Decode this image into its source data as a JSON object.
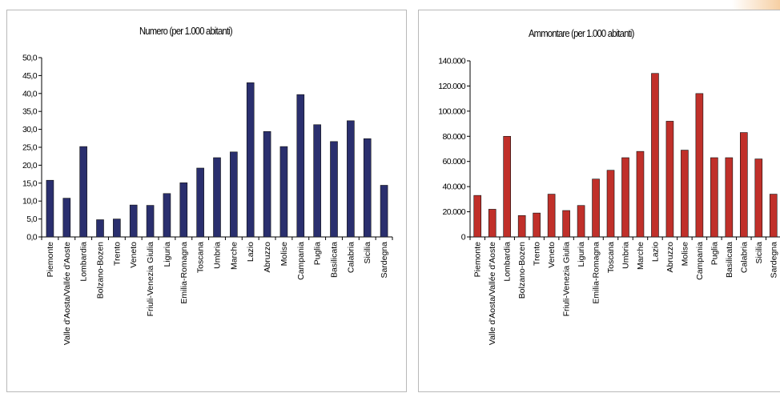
{
  "chart_data": [
    {
      "type": "bar",
      "title": "Numero (per 1.000 abitanti)",
      "xlabel": "",
      "ylabel": "",
      "ylim": [
        0,
        50
      ],
      "yticks": [
        "0,0",
        "5,0",
        "10,0",
        "15,0",
        "20,0",
        "25,0",
        "30,0",
        "35,0",
        "40,0",
        "45,0",
        "50,0"
      ],
      "grid": false,
      "legend": "none",
      "color": "#2a2f6e",
      "categories": [
        "Piemonte",
        "Valle d'Aosta/Vallée d'Aoste",
        "Lombardia",
        "Bolzano-Bozen",
        "Trento",
        "Veneto",
        "Friuli-Venezia Giulia",
        "Liguria",
        "Emilia-Romagna",
        "Toscana",
        "Umbria",
        "Marche",
        "Lazio",
        "Abruzzo",
        "Molise",
        "Campania",
        "Puglia",
        "Basilicata",
        "Calabria",
        "Sicilia",
        "Sardegna"
      ],
      "values": [
        15.8,
        10.8,
        25.2,
        4.8,
        5.0,
        8.9,
        8.8,
        12.1,
        15.1,
        19.2,
        22.1,
        23.7,
        43.0,
        29.4,
        25.2,
        39.7,
        31.3,
        26.6,
        32.4,
        27.4,
        14.4
      ]
    },
    {
      "type": "bar",
      "title": "Ammontare (per 1.000 abitanti)",
      "xlabel": "",
      "ylabel": "",
      "ylim": [
        0,
        140000
      ],
      "yticks": [
        "0",
        "20.000",
        "40.000",
        "60.000",
        "80.000",
        "100.000",
        "120.000",
        "140.000"
      ],
      "grid": false,
      "legend": "none",
      "color": "#c0302a",
      "categories": [
        "Piemonte",
        "Valle d'Aosta/Vallée d'Aoste",
        "Lombardia",
        "Bolzano-Bozen",
        "Trento",
        "Veneto",
        "Friuli-Venezia Giulia",
        "Liguria",
        "Emilia-Romagna",
        "Toscana",
        "Umbria",
        "Marche",
        "Lazio",
        "Abruzzo",
        "Molise",
        "Campania",
        "Puglia",
        "Basilicata",
        "Calabria",
        "Sicilia",
        "Sardegna"
      ],
      "values": [
        33000,
        22000,
        80000,
        17000,
        19000,
        34000,
        21000,
        25000,
        46000,
        53000,
        63000,
        68000,
        130000,
        92000,
        69000,
        114000,
        63000,
        63000,
        83000,
        62000,
        34000
      ]
    }
  ]
}
